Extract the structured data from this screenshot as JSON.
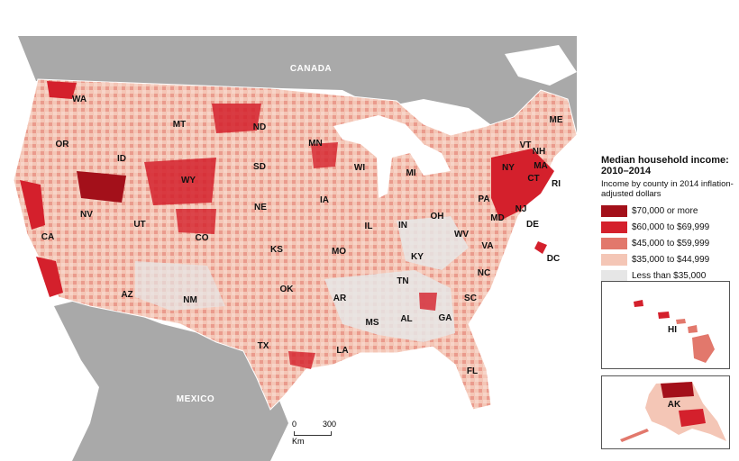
{
  "map": {
    "countries": {
      "north": "CANADA",
      "south": "MEXICO"
    },
    "states": [
      "WA",
      "OR",
      "ID",
      "MT",
      "WY",
      "NV",
      "CA",
      "UT",
      "CO",
      "AZ",
      "NM",
      "ND",
      "SD",
      "NE",
      "KS",
      "OK",
      "TX",
      "MN",
      "IA",
      "MO",
      "AR",
      "LA",
      "WI",
      "IL",
      "MI",
      "IN",
      "OH",
      "KY",
      "TN",
      "MS",
      "AL",
      "GA",
      "FL",
      "SC",
      "NC",
      "VA",
      "WV",
      "PA",
      "NY",
      "VT",
      "NH",
      "MA",
      "CT",
      "RI",
      "NJ",
      "DE",
      "MD",
      "DC",
      "ME"
    ],
    "inset_states": {
      "hawaii": "HI",
      "alaska": "AK"
    },
    "colors": {
      "land_bg": "#a9a9a9",
      "water": "#ffffff",
      "tier_70k": "#a3101a",
      "tier_60k": "#d4202c",
      "tier_45k": "#e2786c",
      "tier_35k": "#f4c6b6",
      "tier_low": "#e6e6e6"
    }
  },
  "legend": {
    "title": "Median household income: 2010–2014",
    "subtitle": "Income by county in 2014 inflation-adjusted dollars",
    "items": [
      {
        "label": "$70,000 or more",
        "color": "#a3101a"
      },
      {
        "label": "$60,000 to $69,999",
        "color": "#d4202c"
      },
      {
        "label": "$45,000 to $59,999",
        "color": "#e2786c"
      },
      {
        "label": "$35,000 to $44,999",
        "color": "#f4c6b6"
      },
      {
        "label": "Less than $35,000",
        "color": "#e6e6e6"
      }
    ]
  },
  "scale": {
    "min": "0",
    "max": "300",
    "unit": "Km"
  }
}
